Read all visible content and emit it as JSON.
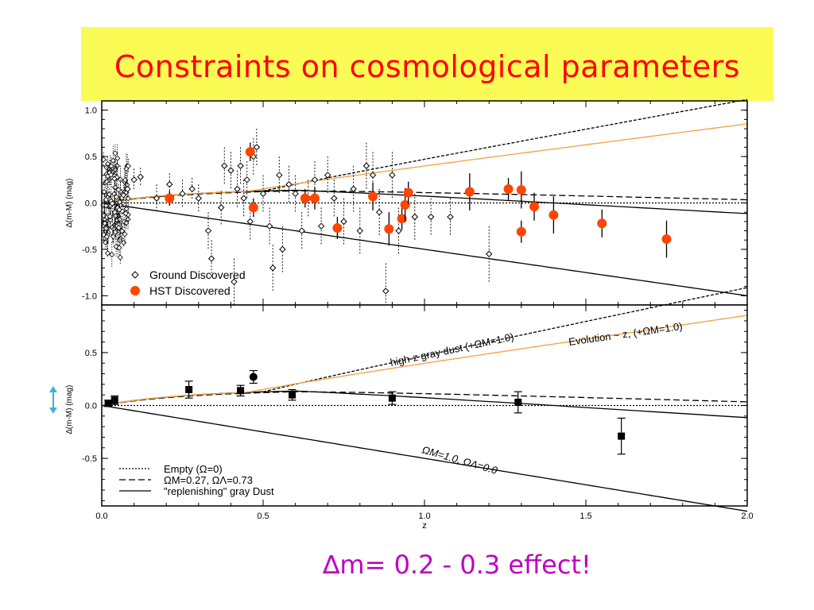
{
  "slide": {
    "title": "Constraints on cosmological parameters",
    "effect_note": "∆m= 0.2 - 0.3  effect!"
  },
  "colors": {
    "title_bg": "#fbfb55",
    "title_text": "#ff0000",
    "note_text": "#c000c0",
    "hst_marker": "#ff4500",
    "evolution_line": "#f5a040",
    "arrow": "#40b0e0"
  },
  "chart_data": [
    {
      "type": "scatter",
      "ylabel": "∆(m-M) (mag)",
      "xlim": [
        0,
        2
      ],
      "ylim": [
        -1.1,
        1.1
      ],
      "yticks": [
        "1.0",
        "0.5",
        "0.0",
        "-0.5",
        "-1.0"
      ],
      "legend": {
        "placement": "bottom-left",
        "entries": [
          "Ground Discovered",
          "HST Discovered"
        ]
      },
      "series": [
        {
          "name": "HST Discovered",
          "points": [
            {
              "x": 0.21,
              "y": 0.05,
              "err": 0.08
            },
            {
              "x": 0.46,
              "y": 0.55,
              "err": 0.1
            },
            {
              "x": 0.47,
              "y": -0.05,
              "err": 0.1
            },
            {
              "x": 0.63,
              "y": 0.05,
              "err": 0.1
            },
            {
              "x": 0.66,
              "y": 0.05,
              "err": 0.12
            },
            {
              "x": 0.73,
              "y": -0.27,
              "err": 0.12
            },
            {
              "x": 0.84,
              "y": 0.07,
              "err": 0.15
            },
            {
              "x": 0.89,
              "y": -0.28,
              "err": 0.18
            },
            {
              "x": 0.93,
              "y": -0.17,
              "err": 0.12
            },
            {
              "x": 0.94,
              "y": -0.02,
              "err": 0.18
            },
            {
              "x": 0.95,
              "y": 0.11,
              "err": 0.12
            },
            {
              "x": 1.14,
              "y": 0.12,
              "err": 0.2
            },
            {
              "x": 1.26,
              "y": 0.15,
              "err": 0.12
            },
            {
              "x": 1.3,
              "y": 0.14,
              "err": 0.2
            },
            {
              "x": 1.3,
              "y": -0.31,
              "err": 0.12
            },
            {
              "x": 1.34,
              "y": -0.04,
              "err": 0.15
            },
            {
              "x": 1.4,
              "y": -0.13,
              "err": 0.2
            },
            {
              "x": 1.55,
              "y": -0.22,
              "err": 0.15
            },
            {
              "x": 1.75,
              "y": -0.39,
              "err": 0.2
            }
          ]
        },
        {
          "name": "Ground Discovered",
          "points": [
            {
              "x": 0.08,
              "y": 0.15,
              "err": 0.1
            },
            {
              "x": 0.1,
              "y": 0.25,
              "err": 0.12
            },
            {
              "x": 0.12,
              "y": 0.28,
              "err": 0.1
            },
            {
              "x": 0.17,
              "y": 0.05,
              "err": 0.15
            },
            {
              "x": 0.21,
              "y": 0.2,
              "err": 0.12
            },
            {
              "x": 0.25,
              "y": 0.1,
              "err": 0.15
            },
            {
              "x": 0.28,
              "y": 0.15,
              "err": 0.12
            },
            {
              "x": 0.3,
              "y": 0.05,
              "err": 0.15
            },
            {
              "x": 0.33,
              "y": -0.3,
              "err": 0.2
            },
            {
              "x": 0.34,
              "y": -0.6,
              "err": 0.2
            },
            {
              "x": 0.37,
              "y": -0.05,
              "err": 0.18
            },
            {
              "x": 0.38,
              "y": 0.4,
              "err": 0.2
            },
            {
              "x": 0.4,
              "y": 0.35,
              "err": 0.2
            },
            {
              "x": 0.41,
              "y": -0.85,
              "err": 0.25
            },
            {
              "x": 0.42,
              "y": 0.15,
              "err": 0.2
            },
            {
              "x": 0.43,
              "y": 0.4,
              "err": 0.2
            },
            {
              "x": 0.44,
              "y": 0.05,
              "err": 0.2
            },
            {
              "x": 0.45,
              "y": 0.25,
              "err": 0.2
            },
            {
              "x": 0.46,
              "y": -0.2,
              "err": 0.2
            },
            {
              "x": 0.47,
              "y": 0.5,
              "err": 0.2
            },
            {
              "x": 0.48,
              "y": 0.6,
              "err": 0.2
            },
            {
              "x": 0.5,
              "y": 0.1,
              "err": 0.2
            },
            {
              "x": 0.52,
              "y": -0.25,
              "err": 0.2
            },
            {
              "x": 0.53,
              "y": -0.7,
              "err": 0.25
            },
            {
              "x": 0.55,
              "y": 0.3,
              "err": 0.2
            },
            {
              "x": 0.56,
              "y": -0.5,
              "err": 0.25
            },
            {
              "x": 0.58,
              "y": 0.2,
              "err": 0.2
            },
            {
              "x": 0.6,
              "y": 0.1,
              "err": 0.2
            },
            {
              "x": 0.62,
              "y": -0.3,
              "err": 0.2
            },
            {
              "x": 0.64,
              "y": 0.05,
              "err": 0.2
            },
            {
              "x": 0.66,
              "y": 0.25,
              "err": 0.2
            },
            {
              "x": 0.68,
              "y": -0.25,
              "err": 0.2
            },
            {
              "x": 0.7,
              "y": 0.3,
              "err": 0.2
            },
            {
              "x": 0.72,
              "y": 0.05,
              "err": 0.2
            },
            {
              "x": 0.75,
              "y": -0.2,
              "err": 0.25
            },
            {
              "x": 0.78,
              "y": 0.15,
              "err": 0.25
            },
            {
              "x": 0.8,
              "y": -0.3,
              "err": 0.25
            },
            {
              "x": 0.82,
              "y": 0.4,
              "err": 0.25
            },
            {
              "x": 0.84,
              "y": 0.3,
              "err": 0.25
            },
            {
              "x": 0.86,
              "y": -0.1,
              "err": 0.25
            },
            {
              "x": 0.88,
              "y": -0.95,
              "err": 0.3
            },
            {
              "x": 0.9,
              "y": 0.3,
              "err": 0.25
            },
            {
              "x": 0.92,
              "y": -0.3,
              "err": 0.25
            },
            {
              "x": 0.97,
              "y": -0.15,
              "err": 0.25
            },
            {
              "x": 1.02,
              "y": -0.15,
              "err": 0.2
            },
            {
              "x": 1.08,
              "y": -0.15,
              "err": 0.2
            },
            {
              "x": 1.2,
              "y": -0.55,
              "err": 0.3
            }
          ]
        }
      ],
      "lines": [
        "high-z gray dust",
        "evolution",
        "empty",
        "lambda",
        "replenishing dust",
        "omega_m_1"
      ]
    },
    {
      "type": "scatter",
      "xlabel": "z",
      "ylabel": "∆(m-M) (mag)",
      "xlim": [
        0,
        2
      ],
      "ylim": [
        -0.95,
        0.95
      ],
      "xticks": [
        "0.0",
        "0.5",
        "1.0",
        "1.5",
        "2.0"
      ],
      "yticks": [
        "0.5",
        "0.0",
        "-0.5"
      ],
      "legend": {
        "placement": "bottom-left",
        "entries": [
          "Empty (Ω=0)",
          "ΩM=0.27, ΩΛ=0.73",
          "\"replenishing\" gray Dust"
        ]
      },
      "annotations": {
        "gray_dust": "high-z gray dust (+ΩM=1.0)",
        "evolution": "Evolution ~ z, (+ΩM=1.0)",
        "omega_m_1": "ΩM=1.0, ΩΛ=0.0"
      },
      "series": [
        {
          "name": "binned",
          "points": [
            {
              "x": 0.02,
              "y": 0.02,
              "err": 0.03
            },
            {
              "x": 0.04,
              "y": 0.05,
              "err": 0.04
            },
            {
              "x": 0.27,
              "y": 0.15,
              "err": 0.08
            },
            {
              "x": 0.43,
              "y": 0.14,
              "err": 0.05
            },
            {
              "x": 0.47,
              "y": 0.27,
              "err": 0.06
            },
            {
              "x": 0.59,
              "y": 0.1,
              "err": 0.05
            },
            {
              "x": 0.9,
              "y": 0.07,
              "err": 0.06
            },
            {
              "x": 1.29,
              "y": 0.03,
              "err": 0.1
            },
            {
              "x": 1.61,
              "y": -0.29,
              "err": 0.17
            }
          ]
        }
      ]
    }
  ]
}
